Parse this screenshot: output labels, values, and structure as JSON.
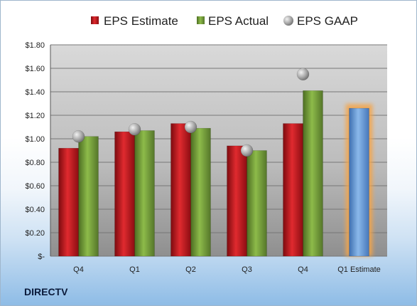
{
  "company": "DIRECTV",
  "colors": {
    "estimate": "#c8151b",
    "actual": "#78a33a",
    "gaap": "#b5b5b5",
    "forecast": "#6a9fdc",
    "forecast_glow": "#f5a54a"
  },
  "chart_data": {
    "type": "bar",
    "title": "",
    "xlabel": "",
    "ylabel": "",
    "ylim": [
      0,
      1.8
    ],
    "yticks": [
      0,
      0.2,
      0.4,
      0.6,
      0.8,
      1.0,
      1.2,
      1.4,
      1.6,
      1.8
    ],
    "ytick_labels": [
      "$-",
      "$0.20",
      "$0.40",
      "$0.60",
      "$0.80",
      "$1.00",
      "$1.20",
      "$1.40",
      "$1.60",
      "$1.80"
    ],
    "categories": [
      "Q4",
      "Q1",
      "Q2",
      "Q3",
      "Q4",
      "Q1 Estimate"
    ],
    "grid": true,
    "legend_position": "top",
    "series": [
      {
        "name": "EPS Estimate",
        "kind": "bar",
        "values": [
          0.92,
          1.06,
          1.13,
          0.94,
          1.13,
          null
        ]
      },
      {
        "name": "EPS Actual",
        "kind": "bar",
        "values": [
          1.02,
          1.07,
          1.09,
          0.9,
          1.41,
          null
        ]
      },
      {
        "name": "EPS GAAP",
        "kind": "marker",
        "values": [
          1.02,
          1.08,
          1.1,
          0.9,
          1.55,
          null
        ]
      }
    ],
    "forecast": {
      "category": "Q1 Estimate",
      "value": 1.26
    }
  }
}
